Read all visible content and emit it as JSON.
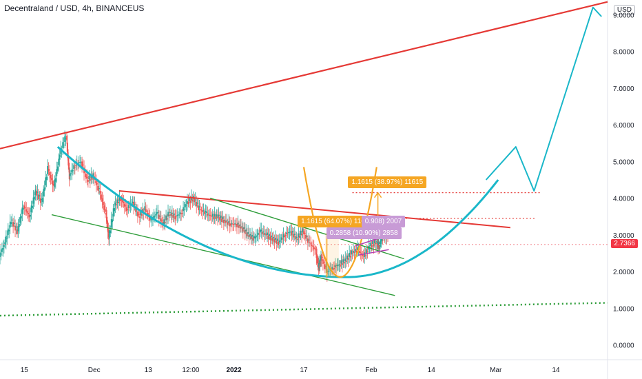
{
  "header": {
    "title": "Decentraland / USD, 4h, BINANCEUS",
    "currency": "USD"
  },
  "price_badge": {
    "value": "2.7366",
    "color": "#f23645"
  },
  "annotations": [
    {
      "id": "measure-a",
      "text": "1.1615 (38.97%) 11615",
      "color": "#f5a623"
    },
    {
      "id": "measure-b",
      "text": "1.1615 (64.07%) 11615",
      "color": "#f5a623"
    },
    {
      "id": "measure-c",
      "text": "0.2858 (10.90%) 2858",
      "color": "#c89bd6"
    },
    {
      "id": "measure-d",
      "text": "0.908) 2007",
      "color": "#c89bd6"
    }
  ],
  "colors": {
    "up": "#26a69a",
    "down": "#ef5350",
    "red_line": "#e53935",
    "cyan": "#1ab7c9",
    "green": "#2e9d3a",
    "orange": "#f5a623",
    "purple": "#b23fb3"
  },
  "chart_data": {
    "type": "candlestick",
    "ylim": [
      -0.4,
      9.4
    ],
    "yticks": [
      0,
      1,
      2,
      3,
      4,
      5,
      6,
      7,
      8,
      9
    ],
    "ytick_labels": [
      "0.0000",
      "1.0000",
      "2.0000",
      "3.0000",
      "4.0000",
      "5.0000",
      "6.0000",
      "7.0000",
      "8.0000",
      "9.0000"
    ],
    "xticks": [
      {
        "label": "15",
        "pos": 0.04,
        "bold": false
      },
      {
        "label": "Dec",
        "pos": 0.155,
        "bold": false
      },
      {
        "label": "13",
        "pos": 0.244,
        "bold": false
      },
      {
        "label": "12:00",
        "pos": 0.314,
        "bold": false
      },
      {
        "label": "2022",
        "pos": 0.385,
        "bold": true
      },
      {
        "label": "17",
        "pos": 0.5,
        "bold": false
      },
      {
        "label": "Feb",
        "pos": 0.611,
        "bold": false
      },
      {
        "label": "14",
        "pos": 0.71,
        "bold": false
      },
      {
        "label": "Mar",
        "pos": 0.816,
        "bold": false
      },
      {
        "label": "14",
        "pos": 0.915,
        "bold": false
      }
    ],
    "price_path": [
      [
        0.0,
        2.4
      ],
      [
        0.01,
        2.8
      ],
      [
        0.02,
        3.4
      ],
      [
        0.03,
        3.1
      ],
      [
        0.04,
        3.8
      ],
      [
        0.05,
        3.5
      ],
      [
        0.06,
        4.2
      ],
      [
        0.07,
        3.9
      ],
      [
        0.08,
        4.8
      ],
      [
        0.09,
        4.3
      ],
      [
        0.1,
        5.2
      ],
      [
        0.11,
        5.7
      ],
      [
        0.115,
        4.6
      ],
      [
        0.125,
        4.9
      ],
      [
        0.135,
        5.0
      ],
      [
        0.145,
        4.5
      ],
      [
        0.155,
        4.6
      ],
      [
        0.165,
        4.2
      ],
      [
        0.175,
        3.6
      ],
      [
        0.18,
        2.9
      ],
      [
        0.19,
        3.8
      ],
      [
        0.2,
        4.0
      ],
      [
        0.21,
        3.7
      ],
      [
        0.22,
        3.9
      ],
      [
        0.23,
        3.5
      ],
      [
        0.24,
        3.7
      ],
      [
        0.25,
        3.4
      ],
      [
        0.26,
        3.6
      ],
      [
        0.27,
        3.3
      ],
      [
        0.28,
        3.6
      ],
      [
        0.29,
        3.5
      ],
      [
        0.3,
        3.6
      ],
      [
        0.31,
        3.9
      ],
      [
        0.32,
        4.0
      ],
      [
        0.33,
        3.7
      ],
      [
        0.34,
        3.6
      ],
      [
        0.35,
        3.5
      ],
      [
        0.36,
        3.5
      ],
      [
        0.37,
        3.4
      ],
      [
        0.38,
        3.3
      ],
      [
        0.39,
        3.3
      ],
      [
        0.4,
        3.2
      ],
      [
        0.41,
        3.0
      ],
      [
        0.42,
        2.9
      ],
      [
        0.43,
        3.1
      ],
      [
        0.44,
        3.0
      ],
      [
        0.45,
        2.9
      ],
      [
        0.46,
        2.8
      ],
      [
        0.47,
        3.0
      ],
      [
        0.48,
        3.1
      ],
      [
        0.49,
        2.9
      ],
      [
        0.5,
        3.1
      ],
      [
        0.51,
        2.8
      ],
      [
        0.52,
        2.6
      ],
      [
        0.525,
        2.1
      ],
      [
        0.53,
        2.4
      ],
      [
        0.54,
        2.0
      ],
      [
        0.55,
        2.1
      ],
      [
        0.56,
        2.2
      ],
      [
        0.57,
        2.3
      ],
      [
        0.58,
        2.5
      ],
      [
        0.59,
        2.6
      ],
      [
        0.6,
        2.4
      ],
      [
        0.61,
        2.7
      ],
      [
        0.62,
        2.8
      ],
      [
        0.625,
        2.7
      ],
      [
        0.63,
        3.0
      ],
      [
        0.64,
        2.9
      ]
    ],
    "lines": [
      {
        "name": "upper-trend-red",
        "color": "#e53935",
        "width": 2.2,
        "points": [
          [
            0.0,
            5.35
          ],
          [
            1.0,
            9.35
          ]
        ]
      },
      {
        "name": "resistance-red",
        "color": "#e53935",
        "width": 2,
        "points": [
          [
            0.196,
            4.2
          ],
          [
            0.84,
            3.2
          ]
        ]
      },
      {
        "name": "channel-upper-green",
        "color": "#2e9d3a",
        "width": 1.4,
        "points": [
          [
            0.346,
            4.0
          ],
          [
            0.665,
            2.35
          ]
        ]
      },
      {
        "name": "channel-lower-green",
        "color": "#2e9d3a",
        "width": 1.4,
        "points": [
          [
            0.085,
            3.55
          ],
          [
            0.65,
            1.35
          ]
        ]
      },
      {
        "name": "projection-cyan",
        "color": "#1ab7c9",
        "width": 2,
        "points": [
          [
            0.8,
            4.5
          ],
          [
            0.849,
            5.4
          ],
          [
            0.879,
            4.2
          ],
          [
            0.976,
            9.2
          ],
          [
            0.99,
            8.95
          ]
        ]
      }
    ],
    "dotted_lines": [
      {
        "name": "level-4-15",
        "color": "#e53935",
        "y": 4.15,
        "x0": 0.58,
        "x1": 0.89
      },
      {
        "name": "level-3-45",
        "color": "#e53935",
        "y": 3.45,
        "x0": 0.56,
        "x1": 0.88
      },
      {
        "name": "level-2-74",
        "color": "#f5a0a8",
        "y": 2.74,
        "x0": 0.0,
        "x1": 1.0
      }
    ],
    "support_green_dotted": {
      "color": "#2e9d3a",
      "points": [
        [
          0.0,
          0.8
        ],
        [
          1.0,
          1.15
        ]
      ]
    },
    "cup_curve": {
      "color": "#1ab7c9",
      "x0": 0.095,
      "xmin": 0.57,
      "ymin": 1.85,
      "x1": 0.82,
      "y_end": 4.5
    }
  }
}
